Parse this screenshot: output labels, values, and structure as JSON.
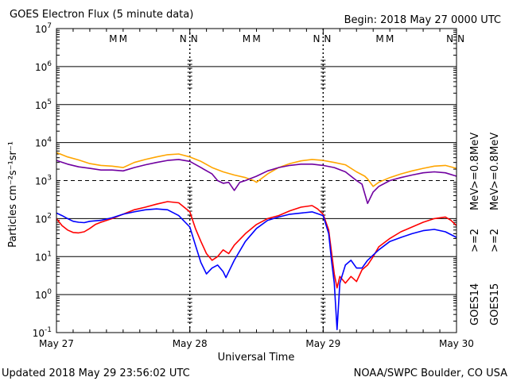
{
  "chart_data": {
    "type": "line",
    "title": "GOES Electron Flux (5 minute data)",
    "begin_label": "Begin: 2018 May 27 0000 UTC",
    "xlabel": "Universal Time",
    "ylabel": "Particles cm⁻²s⁻¹sr⁻¹",
    "y_scale": "log",
    "ylim": [
      0.1,
      10000000
    ],
    "xlim": [
      0,
      72
    ],
    "x_unit": "hours since 2018 May 27 0000 UTC",
    "x_ticks": [
      {
        "x": 0,
        "label": "May 27"
      },
      {
        "x": 24,
        "label": "May 28"
      },
      {
        "x": 48,
        "label": "May 29"
      },
      {
        "x": 72,
        "label": "May 30"
      }
    ],
    "y_ticks": [
      {
        "value": 0.1,
        "base": "10",
        "exp": "-1"
      },
      {
        "value": 1,
        "base": "10",
        "exp": "0"
      },
      {
        "value": 10,
        "base": "10",
        "exp": "1"
      },
      {
        "value": 100,
        "base": "10",
        "exp": "2"
      },
      {
        "value": 1000,
        "base": "10",
        "exp": "3"
      },
      {
        "value": 10000,
        "base": "10",
        "exp": "4"
      },
      {
        "value": 100000,
        "base": "10",
        "exp": "5"
      },
      {
        "value": 1000000,
        "base": "10",
        "exp": "6"
      },
      {
        "value": 10000000,
        "base": "10",
        "exp": "7"
      }
    ],
    "threshold": 1000,
    "grid": true,
    "marker_letters": [
      {
        "x": 10.2,
        "text": "M",
        "color": "#0000ff"
      },
      {
        "x": 12.0,
        "text": "M",
        "color": "#ff0000"
      },
      {
        "x": 22.8,
        "text": "N",
        "color": "#0000ff"
      },
      {
        "x": 24.8,
        "text": "N",
        "color": "#ff0000"
      },
      {
        "x": 34.2,
        "text": "M",
        "color": "#0000ff"
      },
      {
        "x": 36.0,
        "text": "M",
        "color": "#ff0000"
      },
      {
        "x": 46.8,
        "text": "N",
        "color": "#0000ff"
      },
      {
        "x": 48.8,
        "text": "N",
        "color": "#ff0000"
      },
      {
        "x": 58.2,
        "text": "M",
        "color": "#0000ff"
      },
      {
        "x": 60.0,
        "text": "M",
        "color": "#ff0000"
      },
      {
        "x": 70.8,
        "text": "N",
        "color": "#0000ff"
      },
      {
        "x": 72.8,
        "text": "N",
        "color": "#ff0000"
      }
    ],
    "series": [
      {
        "name": ">=0.8 MeV",
        "satellite": "GOES15",
        "color": "#ffa500",
        "points": [
          [
            0,
            5500
          ],
          [
            2,
            4200
          ],
          [
            4,
            3500
          ],
          [
            6,
            2800
          ],
          [
            8,
            2500
          ],
          [
            10,
            2400
          ],
          [
            12,
            2200
          ],
          [
            14,
            3000
          ],
          [
            16,
            3600
          ],
          [
            18,
            4200
          ],
          [
            20,
            4800
          ],
          [
            22,
            5000
          ],
          [
            24,
            4200
          ],
          [
            26,
            3200
          ],
          [
            28,
            2200
          ],
          [
            30,
            1700
          ],
          [
            32,
            1400
          ],
          [
            34,
            1200
          ],
          [
            35.5,
            1000
          ],
          [
            36,
            900
          ],
          [
            38,
            1500
          ],
          [
            40,
            2200
          ],
          [
            42,
            2800
          ],
          [
            44,
            3300
          ],
          [
            46,
            3600
          ],
          [
            48,
            3400
          ],
          [
            50,
            3000
          ],
          [
            52,
            2600
          ],
          [
            54,
            1700
          ],
          [
            55.5,
            1300
          ],
          [
            56,
            1100
          ],
          [
            57,
            700
          ],
          [
            58,
            900
          ],
          [
            60,
            1200
          ],
          [
            62,
            1500
          ],
          [
            64,
            1800
          ],
          [
            66,
            2100
          ],
          [
            68,
            2400
          ],
          [
            70,
            2500
          ],
          [
            72,
            2100
          ]
        ]
      },
      {
        "name": ">=0.8 MeV",
        "satellite": "GOES14",
        "color": "#7000a0",
        "points": [
          [
            0,
            3400
          ],
          [
            2,
            2700
          ],
          [
            4,
            2300
          ],
          [
            6,
            2100
          ],
          [
            8,
            1900
          ],
          [
            10,
            1900
          ],
          [
            12,
            1800
          ],
          [
            14,
            2200
          ],
          [
            16,
            2600
          ],
          [
            18,
            3000
          ],
          [
            20,
            3400
          ],
          [
            22,
            3600
          ],
          [
            24,
            3200
          ],
          [
            26,
            2200
          ],
          [
            28,
            1500
          ],
          [
            29,
            1000
          ],
          [
            30,
            850
          ],
          [
            31,
            900
          ],
          [
            32,
            550
          ],
          [
            33,
            900
          ],
          [
            34,
            1000
          ],
          [
            36,
            1300
          ],
          [
            38,
            1800
          ],
          [
            40,
            2200
          ],
          [
            42,
            2500
          ],
          [
            44,
            2700
          ],
          [
            46,
            2700
          ],
          [
            48,
            2500
          ],
          [
            50,
            2200
          ],
          [
            52,
            1700
          ],
          [
            54,
            1000
          ],
          [
            55,
            800
          ],
          [
            56,
            250
          ],
          [
            57,
            500
          ],
          [
            58,
            700
          ],
          [
            60,
            1000
          ],
          [
            62,
            1200
          ],
          [
            64,
            1400
          ],
          [
            66,
            1600
          ],
          [
            68,
            1700
          ],
          [
            70,
            1600
          ],
          [
            72,
            1300
          ]
        ]
      },
      {
        "name": ">=2 MeV",
        "satellite": "GOES15",
        "color": "#ff0000",
        "points": [
          [
            0,
            100
          ],
          [
            1,
            65
          ],
          [
            2,
            50
          ],
          [
            3,
            43
          ],
          [
            4,
            42
          ],
          [
            5,
            45
          ],
          [
            6,
            55
          ],
          [
            7,
            70
          ],
          [
            8,
            80
          ],
          [
            10,
            100
          ],
          [
            12,
            130
          ],
          [
            14,
            170
          ],
          [
            16,
            200
          ],
          [
            18,
            240
          ],
          [
            20,
            280
          ],
          [
            22,
            260
          ],
          [
            24,
            150
          ],
          [
            25,
            55
          ],
          [
            26,
            25
          ],
          [
            27,
            12
          ],
          [
            28,
            8
          ],
          [
            29,
            10
          ],
          [
            30,
            15
          ],
          [
            31,
            12
          ],
          [
            32,
            20
          ],
          [
            34,
            40
          ],
          [
            36,
            70
          ],
          [
            38,
            100
          ],
          [
            40,
            120
          ],
          [
            42,
            160
          ],
          [
            44,
            200
          ],
          [
            46,
            220
          ],
          [
            47,
            180
          ],
          [
            48,
            130
          ],
          [
            49,
            50
          ],
          [
            50,
            3.5
          ],
          [
            50.5,
            1.5
          ],
          [
            51,
            3
          ],
          [
            52,
            2
          ],
          [
            53,
            3
          ],
          [
            54,
            2.2
          ],
          [
            55,
            4.5
          ],
          [
            56,
            6
          ],
          [
            57,
            10
          ],
          [
            58,
            18
          ],
          [
            60,
            30
          ],
          [
            62,
            45
          ],
          [
            64,
            60
          ],
          [
            66,
            80
          ],
          [
            68,
            100
          ],
          [
            70,
            110
          ],
          [
            71,
            90
          ],
          [
            72,
            65
          ]
        ]
      },
      {
        "name": ">=2 MeV",
        "satellite": "GOES14",
        "color": "#0000ff",
        "points": [
          [
            0,
            140
          ],
          [
            1,
            120
          ],
          [
            2,
            100
          ],
          [
            3,
            85
          ],
          [
            4,
            80
          ],
          [
            5,
            78
          ],
          [
            6,
            85
          ],
          [
            8,
            90
          ],
          [
            10,
            105
          ],
          [
            12,
            130
          ],
          [
            14,
            150
          ],
          [
            16,
            170
          ],
          [
            18,
            180
          ],
          [
            20,
            170
          ],
          [
            22,
            120
          ],
          [
            24,
            60
          ],
          [
            25,
            20
          ],
          [
            26,
            7
          ],
          [
            27,
            3.5
          ],
          [
            28,
            5
          ],
          [
            29,
            6
          ],
          [
            30,
            4
          ],
          [
            30.5,
            2.8
          ],
          [
            31,
            4
          ],
          [
            32,
            8
          ],
          [
            34,
            25
          ],
          [
            36,
            55
          ],
          [
            38,
            90
          ],
          [
            40,
            110
          ],
          [
            42,
            130
          ],
          [
            44,
            140
          ],
          [
            46,
            150
          ],
          [
            48,
            120
          ],
          [
            49,
            40
          ],
          [
            49.5,
            8
          ],
          [
            50,
            2
          ],
          [
            50.5,
            0.12
          ],
          [
            51,
            2
          ],
          [
            52,
            6
          ],
          [
            53,
            8
          ],
          [
            54,
            5
          ],
          [
            55,
            5
          ],
          [
            56,
            8
          ],
          [
            58,
            15
          ],
          [
            60,
            25
          ],
          [
            62,
            32
          ],
          [
            64,
            40
          ],
          [
            66,
            48
          ],
          [
            68,
            52
          ],
          [
            70,
            45
          ],
          [
            72,
            32
          ]
        ]
      }
    ],
    "right_labels": {
      "goes14": "GOES14",
      "goes15": "GOES15",
      "p08": ">=0.8",
      "p2": ">=2",
      "mev": "MeV"
    }
  },
  "footer": {
    "updated": "Updated 2018 May 29 23:56:02 UTC",
    "credit": "NOAA/SWPC Boulder, CO USA"
  }
}
